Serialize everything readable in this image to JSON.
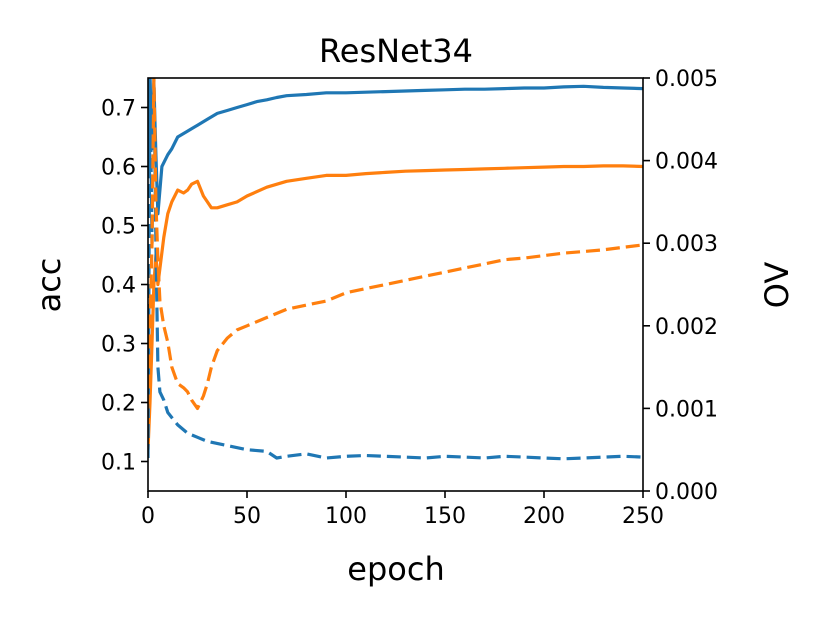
{
  "chart_data": {
    "type": "line",
    "title": "ResNet34",
    "xlabel": "epoch",
    "ylabel_left": "acc",
    "ylabel_right": "OV",
    "xlim": [
      0,
      250
    ],
    "ylim_left": [
      0.05,
      0.75
    ],
    "ylim_right": [
      0.0,
      0.005
    ],
    "xticks": [
      0,
      50,
      100,
      150,
      200,
      250
    ],
    "xtick_labels": [
      "0",
      "50",
      "100",
      "150",
      "200",
      "250"
    ],
    "yticks_left": [
      0.1,
      0.2,
      0.3,
      0.4,
      0.5,
      0.6,
      0.7
    ],
    "ytick_labels_left": [
      "0.1",
      "0.2",
      "0.3",
      "0.4",
      "0.5",
      "0.6",
      "0.7"
    ],
    "yticks_right": [
      0.0,
      0.001,
      0.002,
      0.003,
      0.004,
      0.005
    ],
    "ytick_labels_right": [
      "0.000",
      "0.001",
      "0.002",
      "0.003",
      "0.004",
      "0.005"
    ],
    "grid": false,
    "series": [
      {
        "axis": "left",
        "style": "solid",
        "color": "#1f77b4",
        "x": [
          0,
          1,
          2,
          3,
          4,
          5,
          7,
          10,
          12,
          15,
          20,
          25,
          30,
          35,
          40,
          45,
          50,
          55,
          60,
          65,
          70,
          80,
          90,
          100,
          110,
          120,
          130,
          140,
          150,
          160,
          170,
          180,
          190,
          200,
          210,
          220,
          230,
          240,
          250
        ],
        "y": [
          0.58,
          0.75,
          0.63,
          0.74,
          0.62,
          0.52,
          0.6,
          0.62,
          0.63,
          0.65,
          0.66,
          0.67,
          0.68,
          0.69,
          0.695,
          0.7,
          0.705,
          0.71,
          0.713,
          0.717,
          0.72,
          0.722,
          0.725,
          0.725,
          0.726,
          0.727,
          0.728,
          0.729,
          0.73,
          0.731,
          0.731,
          0.732,
          0.733,
          0.733,
          0.735,
          0.736,
          0.734,
          0.733,
          0.732
        ]
      },
      {
        "axis": "left",
        "style": "solid",
        "color": "#ff7f0e",
        "x": [
          0,
          1,
          2,
          3,
          4,
          5,
          8,
          10,
          12,
          15,
          18,
          20,
          22,
          25,
          28,
          30,
          32,
          35,
          40,
          45,
          50,
          60,
          70,
          80,
          90,
          100,
          110,
          120,
          130,
          140,
          150,
          160,
          170,
          180,
          190,
          200,
          210,
          220,
          230,
          240,
          250
        ],
        "y": [
          0.12,
          0.2,
          0.3,
          0.4,
          0.45,
          0.4,
          0.48,
          0.52,
          0.54,
          0.56,
          0.555,
          0.56,
          0.57,
          0.575,
          0.55,
          0.54,
          0.53,
          0.53,
          0.535,
          0.54,
          0.55,
          0.565,
          0.575,
          0.58,
          0.585,
          0.585,
          0.588,
          0.59,
          0.592,
          0.593,
          0.594,
          0.595,
          0.596,
          0.597,
          0.598,
          0.599,
          0.6,
          0.6,
          0.601,
          0.601,
          0.6
        ]
      },
      {
        "axis": "right",
        "style": "dashed",
        "color": "#1f77b4",
        "x": [
          0,
          1,
          2,
          3,
          4,
          5,
          6,
          8,
          10,
          15,
          20,
          25,
          30,
          40,
          50,
          60,
          65,
          70,
          80,
          90,
          100,
          110,
          120,
          130,
          140,
          150,
          160,
          170,
          180,
          190,
          200,
          210,
          220,
          230,
          240,
          250
        ],
        "y": [
          0.0004,
          0.005,
          0.003,
          0.005,
          0.003,
          0.0015,
          0.0012,
          0.0011,
          0.00095,
          0.0008,
          0.0007,
          0.00065,
          0.0006,
          0.00055,
          0.0005,
          0.00048,
          0.0004,
          0.00042,
          0.00045,
          0.0004,
          0.00042,
          0.00043,
          0.00042,
          0.00041,
          0.0004,
          0.00042,
          0.00041,
          0.0004,
          0.00042,
          0.00041,
          0.0004,
          0.00039,
          0.0004,
          0.00041,
          0.00042,
          0.00041
        ]
      },
      {
        "axis": "right",
        "style": "dashed",
        "color": "#ff7f0e",
        "x": [
          0,
          1,
          2,
          3,
          4,
          5,
          6,
          8,
          10,
          12,
          15,
          18,
          20,
          22,
          25,
          28,
          30,
          32,
          35,
          40,
          45,
          50,
          60,
          70,
          80,
          90,
          100,
          110,
          120,
          130,
          140,
          150,
          160,
          170,
          180,
          190,
          200,
          210,
          220,
          230,
          240,
          250
        ],
        "y": [
          0.001,
          0.002,
          0.003,
          0.005,
          0.0035,
          0.0028,
          0.0023,
          0.002,
          0.0018,
          0.0015,
          0.0013,
          0.00125,
          0.0012,
          0.0011,
          0.001,
          0.00115,
          0.0013,
          0.0015,
          0.0017,
          0.00185,
          0.00195,
          0.002,
          0.0021,
          0.0022,
          0.00225,
          0.0023,
          0.0024,
          0.00245,
          0.0025,
          0.00255,
          0.0026,
          0.00265,
          0.0027,
          0.00275,
          0.0028,
          0.00282,
          0.00285,
          0.00288,
          0.0029,
          0.00292,
          0.00295,
          0.00298
        ]
      }
    ]
  }
}
